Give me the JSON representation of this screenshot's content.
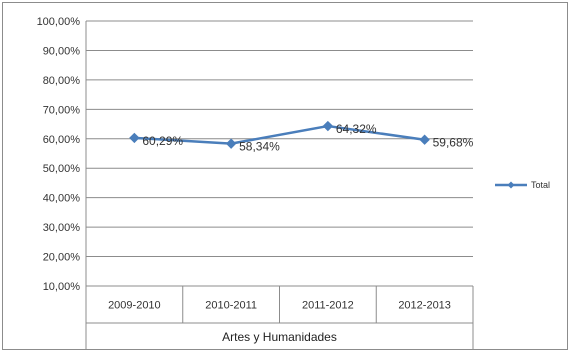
{
  "chart_data": {
    "type": "line",
    "categories": [
      "2009-2010",
      "2010-2011",
      "2011-2012",
      "2012-2013"
    ],
    "group_label": "Artes y Humanidades",
    "series": [
      {
        "name": "Total",
        "values": [
          60.29,
          58.34,
          64.32,
          59.68
        ],
        "labels": [
          "60,29%",
          "58,34%",
          "64,32%",
          "59,68%"
        ],
        "color": "#4a7ebb"
      }
    ],
    "ylim": [
      10,
      100
    ],
    "y_ticks": [
      10,
      20,
      30,
      40,
      50,
      60,
      70,
      80,
      90,
      100
    ],
    "y_tick_labels": [
      "10,00%",
      "20,00%",
      "30,00%",
      "40,00%",
      "50,00%",
      "60,00%",
      "70,00%",
      "80,00%",
      "90,00%",
      "100,00%"
    ],
    "grid": true,
    "legend_position": "right",
    "title": "",
    "xlabel": "",
    "ylabel": ""
  }
}
